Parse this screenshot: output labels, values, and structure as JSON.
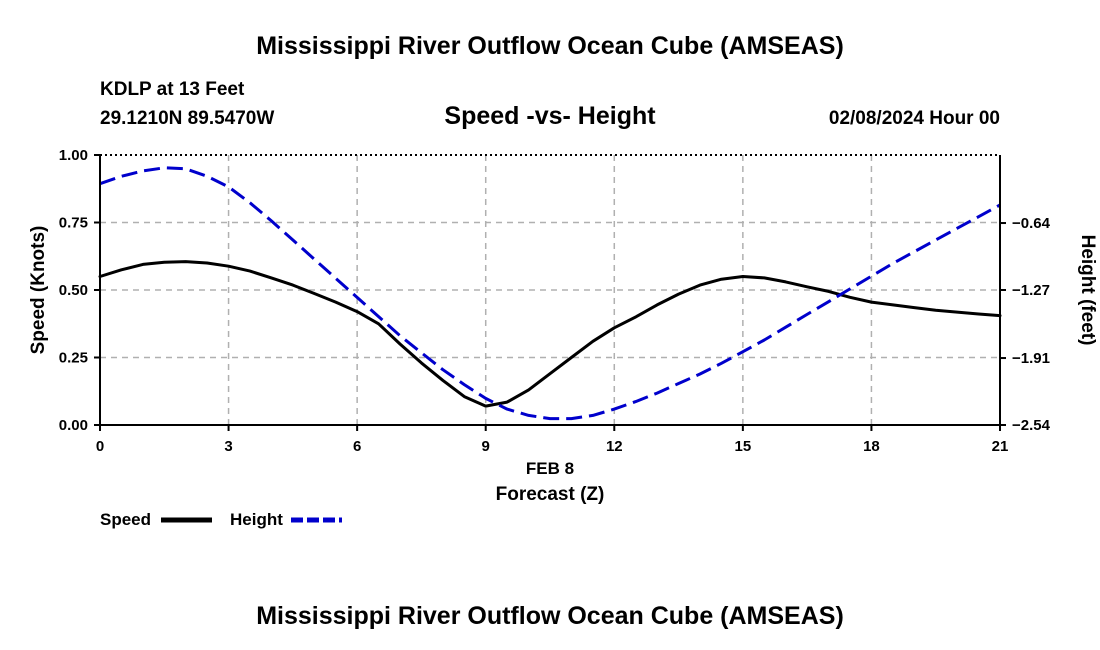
{
  "header": {
    "title": "Mississippi River Outflow Ocean Cube (AMSEAS)",
    "station": "KDLP at 13 Feet",
    "coords": "29.1210N  89.5470W",
    "date": "02/08/2024 Hour 00",
    "footer_title": "Mississippi River Outflow Ocean Cube (AMSEAS)"
  },
  "chart_data": {
    "type": "line",
    "title": "Speed -vs- Height",
    "xlabel": "Forecast (Z)",
    "xlabel_date": "FEB 8",
    "ylabel": "Speed (Knots)",
    "y2label": "Height (feet)",
    "xlim": [
      0,
      21
    ],
    "ylim": [
      0,
      1
    ],
    "y2lim": [
      -2.54,
      0.0
    ],
    "x_ticks": [
      0,
      3,
      6,
      9,
      12,
      15,
      18,
      21
    ],
    "x_tick_labels": [
      "0",
      "3",
      "6",
      "9",
      "12",
      "15",
      "18",
      "21"
    ],
    "y_ticks": [
      0,
      0.25,
      0.5,
      0.75,
      1.0
    ],
    "y_tick_labels": [
      "0.00",
      "0.25",
      "0.50",
      "0.75",
      "1.00"
    ],
    "y2_ticks": [
      -2.54,
      -1.91,
      -1.27,
      -0.64
    ],
    "y2_tick_labels": [
      "−2.54",
      "−1.91",
      "−1.27",
      "−0.64"
    ],
    "grid": true,
    "legend": [
      {
        "name": "Speed",
        "color": "#000000",
        "style": "solid"
      },
      {
        "name": "Height",
        "color": "#0000cc",
        "style": "dashed"
      }
    ],
    "series": [
      {
        "name": "Speed",
        "axis": "left",
        "color": "#000000",
        "x": [
          0,
          0.5,
          1,
          1.5,
          2,
          2.5,
          3,
          3.5,
          4,
          4.5,
          5,
          5.5,
          6,
          6.5,
          7,
          7.5,
          8,
          8.5,
          9,
          9.5,
          10,
          10.5,
          11,
          11.5,
          12,
          12.5,
          13,
          13.5,
          14,
          14.5,
          15,
          15.5,
          16,
          16.5,
          17,
          17.5,
          18,
          18.5,
          19,
          19.5,
          20,
          20.5,
          21
        ],
        "values": [
          0.55,
          0.575,
          0.595,
          0.603,
          0.605,
          0.6,
          0.588,
          0.57,
          0.545,
          0.518,
          0.487,
          0.455,
          0.42,
          0.375,
          0.3,
          0.23,
          0.165,
          0.105,
          0.07,
          0.085,
          0.13,
          0.19,
          0.25,
          0.31,
          0.36,
          0.4,
          0.445,
          0.485,
          0.518,
          0.54,
          0.55,
          0.545,
          0.53,
          0.512,
          0.495,
          0.473,
          0.455,
          0.445,
          0.435,
          0.425,
          0.418,
          0.411,
          0.405
        ]
      },
      {
        "name": "Height",
        "axis": "right",
        "color": "#0000cc",
        "x": [
          0,
          0.5,
          1,
          1.5,
          2,
          2.5,
          3,
          3.5,
          4,
          4.5,
          5,
          5.5,
          6,
          6.5,
          7,
          7.5,
          8,
          8.5,
          9,
          9.5,
          10,
          10.5,
          11,
          11.5,
          12,
          12.5,
          13,
          13.5,
          14,
          14.5,
          15,
          15.5,
          16,
          16.5,
          17,
          17.5,
          18,
          18.5,
          19,
          19.5,
          20,
          20.5,
          21
        ],
        "values": [
          -0.27,
          -0.2,
          -0.15,
          -0.12,
          -0.13,
          -0.2,
          -0.3,
          -0.45,
          -0.62,
          -0.8,
          -0.98,
          -1.16,
          -1.34,
          -1.52,
          -1.7,
          -1.86,
          -2.02,
          -2.16,
          -2.29,
          -2.39,
          -2.45,
          -2.48,
          -2.48,
          -2.45,
          -2.39,
          -2.32,
          -2.24,
          -2.15,
          -2.06,
          -1.96,
          -1.85,
          -1.74,
          -1.62,
          -1.5,
          -1.38,
          -1.26,
          -1.14,
          -1.02,
          -0.91,
          -0.8,
          -0.69,
          -0.58,
          -0.47
        ]
      }
    ]
  }
}
